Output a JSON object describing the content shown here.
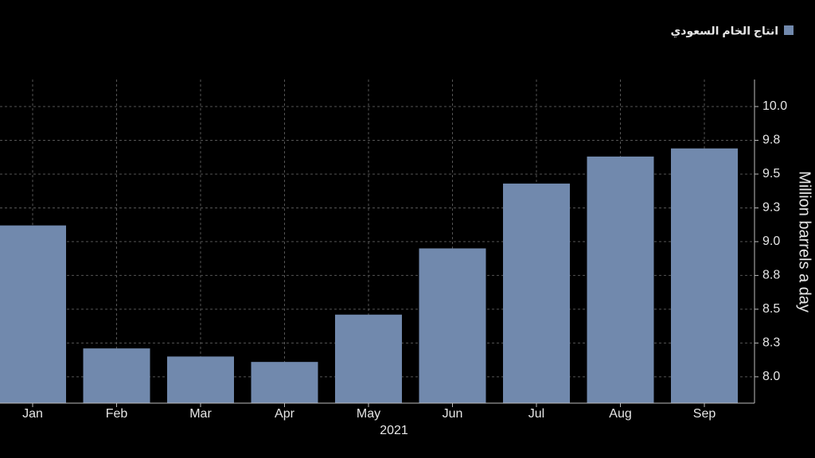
{
  "chart_data": {
    "type": "bar",
    "x_label": "2021",
    "y_label": "Million barrels a day",
    "categories": [
      "Jan",
      "Feb",
      "Mar",
      "Apr",
      "May",
      "Jun",
      "Jul",
      "Aug",
      "Sep"
    ],
    "series": [
      {
        "name": "انتاج الخام السعودي",
        "color": "#7189ad",
        "values": [
          9.12,
          8.21,
          8.15,
          8.11,
          8.46,
          8.95,
          9.43,
          9.63,
          9.69
        ]
      }
    ],
    "ylim": [
      7.805,
      10.2
    ],
    "yticks": [
      {
        "value": 8.0,
        "label": "8.0"
      },
      {
        "value": 8.25,
        "label": "8.3"
      },
      {
        "value": 8.5,
        "label": "8.5"
      },
      {
        "value": 8.75,
        "label": "8.8"
      },
      {
        "value": 9.0,
        "label": "9.0"
      },
      {
        "value": 9.25,
        "label": "9.3"
      },
      {
        "value": 9.5,
        "label": "9.5"
      },
      {
        "value": 9.75,
        "label": "9.8"
      },
      {
        "value": 10.0,
        "label": "10.0"
      }
    ],
    "grid": true,
    "legend": "top-right"
  }
}
